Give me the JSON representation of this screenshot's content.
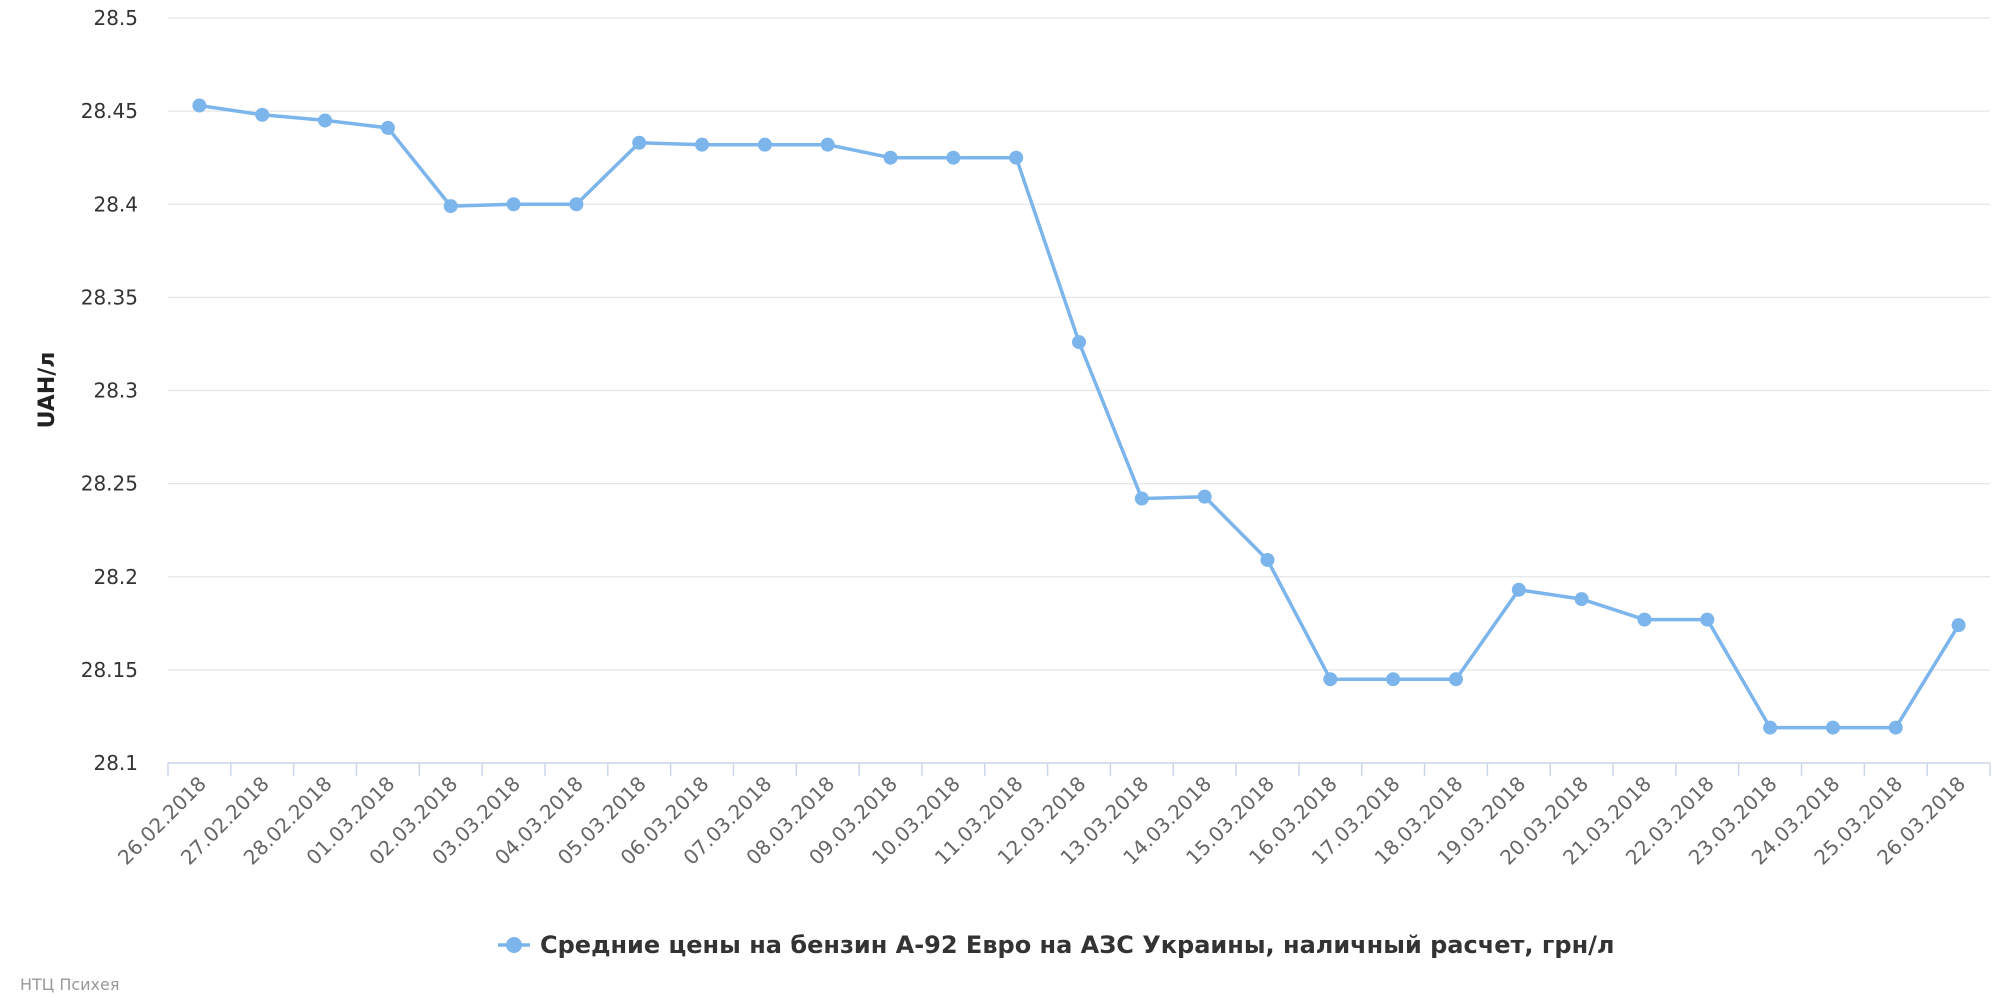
{
  "chart_data": {
    "type": "line",
    "ylabel": "UAH/л",
    "ylim": [
      28.1,
      28.5
    ],
    "yticks": [
      "28.1",
      "28.15",
      "28.2",
      "28.25",
      "28.3",
      "28.35",
      "28.4",
      "28.45",
      "28.5"
    ],
    "grid": true,
    "legend": "bottom-center",
    "categories": [
      "26.02.2018",
      "27.02.2018",
      "28.02.2018",
      "01.03.2018",
      "02.03.2018",
      "03.03.2018",
      "04.03.2018",
      "05.03.2018",
      "06.03.2018",
      "07.03.2018",
      "08.03.2018",
      "09.03.2018",
      "10.03.2018",
      "11.03.2018",
      "12.03.2018",
      "13.03.2018",
      "14.03.2018",
      "15.03.2018",
      "16.03.2018",
      "17.03.2018",
      "18.03.2018",
      "19.03.2018",
      "20.03.2018",
      "21.03.2018",
      "22.03.2018",
      "23.03.2018",
      "24.03.2018",
      "25.03.2018",
      "26.03.2018"
    ],
    "series": [
      {
        "name": "Средние цены на бензин А-92 Евро на АЗС Украины, наличный расчет, грн/л",
        "color": "#7cb5ec",
        "values": [
          28.453,
          28.448,
          28.445,
          28.441,
          28.399,
          28.4,
          28.4,
          28.433,
          28.432,
          28.432,
          28.432,
          28.425,
          28.425,
          28.425,
          28.326,
          28.242,
          28.243,
          28.209,
          28.145,
          28.145,
          28.145,
          28.193,
          28.188,
          28.177,
          28.177,
          28.119,
          28.119,
          28.119,
          28.174
        ]
      }
    ]
  },
  "credit": "НТЦ Психея",
  "colors": {
    "grid": "#e6e6e6",
    "axis": "#ccd6eb",
    "series": "#7cb5ec"
  }
}
